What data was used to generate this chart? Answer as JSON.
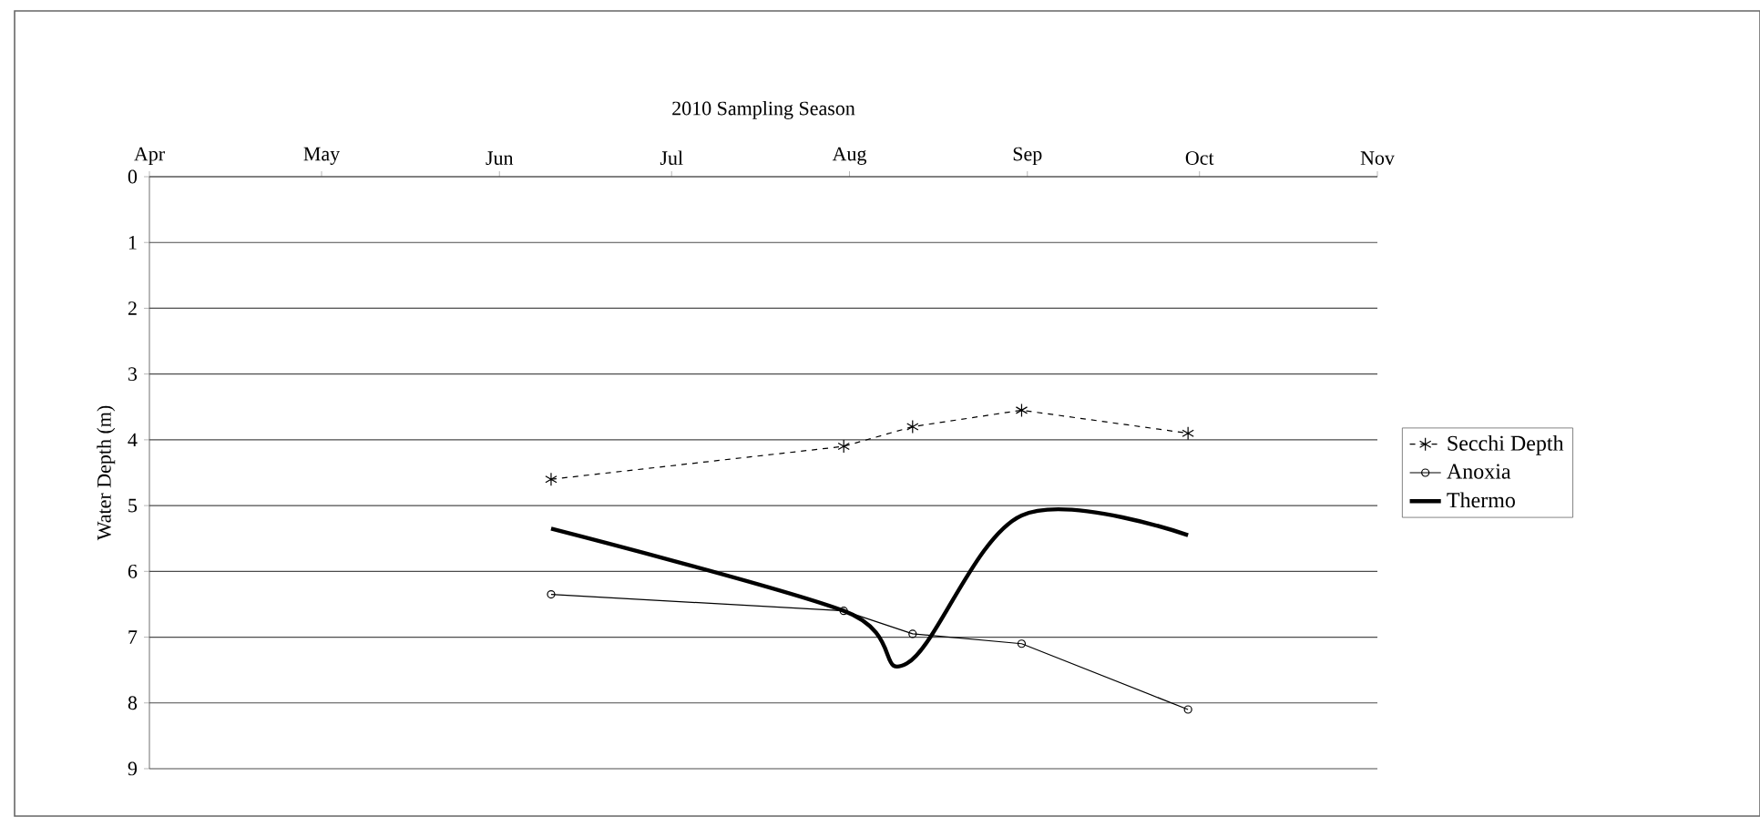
{
  "chart_data": {
    "type": "line",
    "title": "2010 Sampling Season",
    "ylabel": "Water Depth (m)",
    "xlim": [
      "2010-04-01",
      "2010-11-01"
    ],
    "xticks": [
      {
        "value": "2010-04-01",
        "label": "Apr"
      },
      {
        "value": "2010-05-01",
        "label": "May"
      },
      {
        "value": "2010-06-01",
        "label": "Jun"
      },
      {
        "value": "2010-07-01",
        "label": "Jul"
      },
      {
        "value": "2010-08-01",
        "label": "Aug"
      },
      {
        "value": "2010-09-01",
        "label": "Sep"
      },
      {
        "value": "2010-10-01",
        "label": "Oct"
      },
      {
        "value": "2010-11-01",
        "label": "Nov"
      }
    ],
    "ylim": [
      9,
      0
    ],
    "yticks": [
      0,
      1,
      2,
      3,
      4,
      5,
      6,
      7,
      8,
      9
    ],
    "grid": "y",
    "legend": "right",
    "series": [
      {
        "name": "Secchi Depth",
        "color": "#000000",
        "marker": "cross",
        "line_style": "dashed",
        "x": [
          "2010-06-10",
          "2010-07-31",
          "2010-08-12",
          "2010-08-31",
          "2010-09-29"
        ],
        "values": [
          4.6,
          4.1,
          3.8,
          3.55,
          3.9
        ]
      },
      {
        "name": "Anoxia",
        "color": "#000000",
        "marker": "circle",
        "line_style": "solid",
        "x": [
          "2010-06-10",
          "2010-07-31",
          "2010-08-12",
          "2010-08-31",
          "2010-09-29"
        ],
        "values": [
          6.35,
          6.6,
          6.95,
          7.1,
          8.1
        ]
      },
      {
        "name": "Thermo",
        "color": "#000000",
        "marker": "none",
        "line_style": "solid",
        "x": [
          "2010-06-10",
          "2010-07-31",
          "2010-08-11",
          "2010-08-31",
          "2010-09-29"
        ],
        "values": [
          5.35,
          6.6,
          7.4,
          5.15,
          5.45
        ]
      }
    ]
  }
}
